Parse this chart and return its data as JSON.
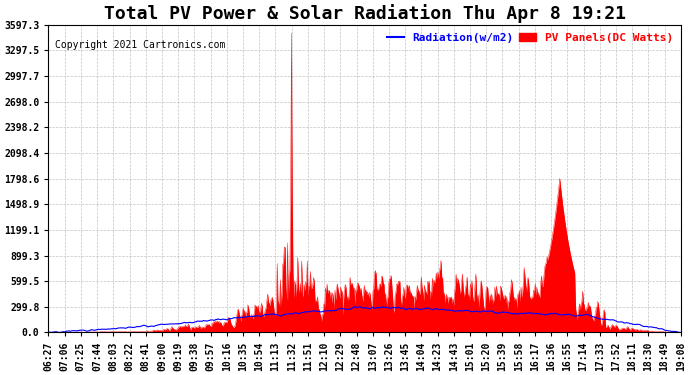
{
  "title": "Total PV Power & Solar Radiation Thu Apr 8 19:21",
  "copyright": "Copyright 2021 Cartronics.com",
  "legend_radiation": "Radiation(w/m2)",
  "legend_pv": "PV Panels(DC Watts)",
  "radiation_color": "blue",
  "pv_color": "red",
  "yticks": [
    0.0,
    299.8,
    599.5,
    899.3,
    1199.1,
    1498.9,
    1798.6,
    2098.4,
    2398.2,
    2698.0,
    2997.7,
    3297.5,
    3597.3
  ],
  "ytick_labels": [
    "0.0",
    "299.8",
    "599.5",
    "899.3",
    "1199.1",
    "1498.9",
    "1798.6",
    "2098.4",
    "2398.2",
    "2698.0",
    "2997.7",
    "3297.5",
    "3597.3"
  ],
  "ylim": [
    0,
    3597.3
  ],
  "xtick_labels": [
    "06:27",
    "07:06",
    "07:25",
    "07:44",
    "08:03",
    "08:22",
    "08:41",
    "09:00",
    "09:19",
    "09:38",
    "09:57",
    "10:16",
    "10:35",
    "10:54",
    "11:13",
    "11:32",
    "11:51",
    "12:10",
    "12:29",
    "12:48",
    "13:07",
    "13:26",
    "13:45",
    "14:04",
    "14:23",
    "14:43",
    "15:01",
    "15:20",
    "15:39",
    "15:58",
    "16:17",
    "16:36",
    "16:55",
    "17:14",
    "17:33",
    "17:52",
    "18:11",
    "18:30",
    "18:49",
    "19:08"
  ],
  "background_color": "#ffffff",
  "grid_color": "#aaaaaa",
  "title_fontsize": 13,
  "axis_fontsize": 7,
  "copyright_fontsize": 7,
  "legend_fontsize": 8,
  "n_xticks": 40,
  "n_points": 800
}
